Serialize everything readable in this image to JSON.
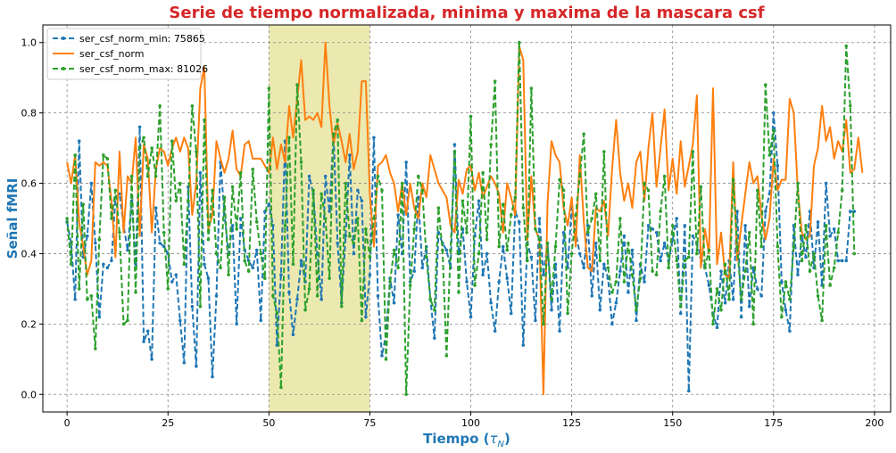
{
  "chart_data": {
    "type": "line",
    "title": "Serie de tiempo normalizada, minima y maxima de la mascara csf",
    "xlabel": "Tiempo (",
    "xlabel_symbol": "τ",
    "xlabel_subscript": "N",
    "xlabel_suffix": ")",
    "ylabel": "Señal fMRI",
    "xlim": [
      -6,
      204
    ],
    "ylim": [
      -0.05,
      1.05
    ],
    "xticks": [
      "0",
      "25",
      "50",
      "75",
      "100",
      "125",
      "150",
      "175",
      "200"
    ],
    "yticks": [
      "0.0",
      "0.2",
      "0.4",
      "0.6",
      "0.8",
      "1.0"
    ],
    "grid": true,
    "legend_position": "top-left",
    "highlight_span": [
      50,
      75
    ],
    "colors": {
      "title": "#d62728",
      "axis_label": "#1f77b4",
      "span": "#e6e196"
    },
    "series": [
      {
        "name": "ser_csf_norm_min: 75865",
        "color": "#1f77b4",
        "style": "dashed",
        "marker": true,
        "values": [
          0.49,
          0.43,
          0.27,
          0.72,
          0.39,
          0.45,
          0.6,
          0.43,
          0.22,
          0.37,
          0.36,
          0.38,
          0.56,
          0.57,
          0.48,
          0.41,
          0.55,
          0.37,
          0.76,
          0.15,
          0.18,
          0.1,
          0.53,
          0.43,
          0.42,
          0.4,
          0.32,
          0.34,
          0.21,
          0.09,
          0.59,
          0.25,
          0.08,
          0.63,
          0.37,
          0.33,
          0.05,
          0.28,
          0.66,
          0.51,
          0.4,
          0.48,
          0.2,
          0.5,
          0.41,
          0.38,
          0.36,
          0.41,
          0.21,
          0.52,
          0.54,
          0.48,
          0.14,
          0.34,
          0.72,
          0.29,
          0.17,
          0.27,
          0.38,
          0.32,
          0.62,
          0.57,
          0.4,
          0.27,
          0.62,
          0.52,
          0.74,
          0.43,
          0.26,
          0.45,
          0.68,
          0.4,
          0.58,
          0.55,
          0.22,
          0.34,
          0.73,
          0.28,
          0.11,
          0.17,
          0.33,
          0.26,
          0.51,
          0.4,
          0.66,
          0.32,
          0.35,
          0.56,
          0.36,
          0.42,
          0.27,
          0.16,
          0.46,
          0.43,
          0.41,
          0.36,
          0.71,
          0.4,
          0.47,
          0.32,
          0.22,
          0.45,
          0.55,
          0.34,
          0.4,
          0.26,
          0.18,
          0.32,
          0.42,
          0.33,
          0.23,
          0.52,
          0.49,
          0.14,
          0.43,
          0.39,
          0.21,
          0.5,
          0.34,
          0.43,
          0.24,
          0.37,
          0.18,
          0.46,
          0.36,
          0.53,
          0.46,
          0.4,
          0.36,
          0.48,
          0.28,
          0.43,
          0.24,
          0.37,
          0.33,
          0.2,
          0.26,
          0.35,
          0.45,
          0.29,
          0.41,
          0.21,
          0.37,
          0.32,
          0.48,
          0.47,
          0.46,
          0.38,
          0.43,
          0.38,
          0.44,
          0.5,
          0.23,
          0.48,
          0.01,
          0.45,
          0.43,
          0.39,
          0.36,
          0.31,
          0.23,
          0.19,
          0.35,
          0.26,
          0.38,
          0.27,
          0.52,
          0.22,
          0.48,
          0.25,
          0.36,
          0.3,
          0.28,
          0.52,
          0.57,
          0.8,
          0.65,
          0.32,
          0.24,
          0.18,
          0.48,
          0.34,
          0.45,
          0.39,
          0.52,
          0.36,
          0.49,
          0.31,
          0.6,
          0.45,
          0.47,
          0.38,
          0.38,
          0.38,
          0.52,
          0.52
        ]
      },
      {
        "name": "ser_csf_norm",
        "color": "#ff7f0e",
        "style": "solid",
        "marker": false,
        "values": [
          0.66,
          0.6,
          0.68,
          0.49,
          0.42,
          0.34,
          0.38,
          0.66,
          0.65,
          0.66,
          0.65,
          0.55,
          0.39,
          0.69,
          0.46,
          0.62,
          0.6,
          0.73,
          0.45,
          0.71,
          0.67,
          0.46,
          0.64,
          0.7,
          0.69,
          0.65,
          0.7,
          0.73,
          0.69,
          0.73,
          0.7,
          0.51,
          0.6,
          0.87,
          0.93,
          0.47,
          0.51,
          0.72,
          0.67,
          0.63,
          0.67,
          0.75,
          0.64,
          0.62,
          0.71,
          0.72,
          0.67,
          0.67,
          0.67,
          0.65,
          0.63,
          0.73,
          0.64,
          0.71,
          0.66,
          0.82,
          0.73,
          0.84,
          0.95,
          0.78,
          0.79,
          0.78,
          0.8,
          0.76,
          1.0,
          0.82,
          0.71,
          0.77,
          0.72,
          0.66,
          0.74,
          0.64,
          0.69,
          0.89,
          0.89,
          0.57,
          0.42,
          0.65,
          0.66,
          0.68,
          0.63,
          0.6,
          0.52,
          0.6,
          0.51,
          0.6,
          0.53,
          0.5,
          0.6,
          0.56,
          0.68,
          0.64,
          0.6,
          0.58,
          0.56,
          0.48,
          0.46,
          0.61,
          0.57,
          0.64,
          0.65,
          0.58,
          0.63,
          0.56,
          0.59,
          0.62,
          0.6,
          0.57,
          0.46,
          0.6,
          0.56,
          0.51,
          0.99,
          0.95,
          0.44,
          0.62,
          0.47,
          0.44,
          0.0,
          0.54,
          0.72,
          0.68,
          0.66,
          0.53,
          0.48,
          0.56,
          0.42,
          0.68,
          0.49,
          0.36,
          0.35,
          0.53,
          0.52,
          0.55,
          0.45,
          0.64,
          0.78,
          0.63,
          0.55,
          0.6,
          0.53,
          0.66,
          0.69,
          0.55,
          0.7,
          0.8,
          0.59,
          0.7,
          0.81,
          0.58,
          0.67,
          0.57,
          0.72,
          0.59,
          0.65,
          0.71,
          0.85,
          0.36,
          0.47,
          0.4,
          0.87,
          0.37,
          0.46,
          0.34,
          0.33,
          0.66,
          0.38,
          0.48,
          0.57,
          0.66,
          0.6,
          0.62,
          0.51,
          0.44,
          0.5,
          0.67,
          0.58,
          0.61,
          0.61,
          0.84,
          0.8,
          0.58,
          0.46,
          0.44,
          0.45,
          0.65,
          0.7,
          0.82,
          0.72,
          0.76,
          0.67,
          0.72,
          0.69,
          0.78,
          0.63,
          0.64,
          0.73,
          0.63
        ]
      },
      {
        "name": "ser_csf_norm_max: 81026",
        "color": "#2ca02c",
        "style": "dashed",
        "marker": true,
        "values": [
          0.5,
          0.37,
          0.68,
          0.3,
          0.54,
          0.27,
          0.28,
          0.13,
          0.44,
          0.68,
          0.67,
          0.5,
          0.58,
          0.46,
          0.2,
          0.21,
          0.62,
          0.29,
          0.7,
          0.73,
          0.62,
          0.7,
          0.62,
          0.82,
          0.46,
          0.3,
          0.72,
          0.55,
          0.6,
          0.37,
          0.55,
          0.82,
          0.69,
          0.25,
          0.78,
          0.44,
          0.58,
          0.4,
          0.36,
          0.56,
          0.34,
          0.59,
          0.47,
          0.63,
          0.38,
          0.35,
          0.64,
          0.49,
          0.4,
          0.33,
          0.87,
          0.28,
          0.23,
          0.02,
          0.48,
          0.73,
          0.37,
          0.88,
          0.66,
          0.24,
          0.3,
          0.58,
          0.28,
          0.57,
          0.5,
          0.33,
          0.74,
          0.78,
          0.25,
          0.6,
          0.45,
          0.43,
          0.5,
          0.21,
          0.47,
          0.39,
          0.5,
          0.62,
          0.58,
          0.1,
          0.32,
          0.41,
          0.36,
          0.6,
          0.0,
          0.31,
          0.47,
          0.62,
          0.58,
          0.39,
          0.27,
          0.24,
          0.53,
          0.41,
          0.11,
          0.41,
          0.69,
          0.29,
          0.55,
          0.46,
          0.79,
          0.31,
          0.4,
          0.63,
          0.44,
          0.71,
          0.89,
          0.42,
          0.54,
          0.41,
          0.51,
          0.56,
          1.0,
          0.53,
          0.38,
          0.87,
          0.47,
          0.44,
          0.2,
          0.43,
          0.27,
          0.42,
          0.61,
          0.58,
          0.23,
          0.4,
          0.51,
          0.62,
          0.74,
          0.46,
          0.5,
          0.57,
          0.38,
          0.69,
          0.36,
          0.29,
          0.32,
          0.5,
          0.32,
          0.43,
          0.34,
          0.24,
          0.33,
          0.6,
          0.58,
          0.35,
          0.34,
          0.52,
          0.62,
          0.36,
          0.48,
          0.38,
          0.25,
          0.38,
          0.39,
          0.69,
          0.4,
          0.59,
          0.36,
          0.41,
          0.2,
          0.3,
          0.24,
          0.37,
          0.27,
          0.61,
          0.42,
          0.27,
          0.35,
          0.46,
          0.2,
          0.58,
          0.42,
          0.88,
          0.68,
          0.75,
          0.42,
          0.22,
          0.32,
          0.27,
          0.42,
          0.6,
          0.38,
          0.48,
          0.35,
          0.4,
          0.28,
          0.21,
          0.48,
          0.31,
          0.36,
          0.46,
          0.58,
          0.99,
          0.82,
          0.4
        ]
      }
    ]
  }
}
